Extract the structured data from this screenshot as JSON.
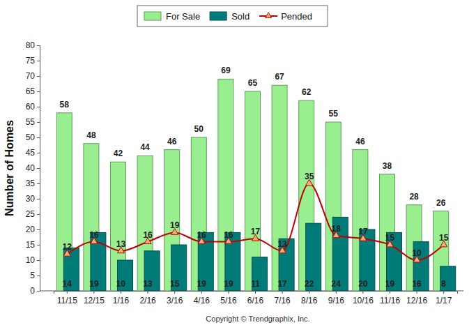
{
  "chart_data": {
    "type": "bar",
    "categories": [
      "11/15",
      "12/15",
      "1/16",
      "2/16",
      "3/16",
      "4/16",
      "5/16",
      "6/16",
      "7/16",
      "8/16",
      "9/16",
      "10/16",
      "11/16",
      "12/16",
      "1/17"
    ],
    "series": [
      {
        "name": "For Sale",
        "type": "bar",
        "color": "#99ee90",
        "values": [
          58,
          48,
          42,
          44,
          46,
          50,
          69,
          65,
          67,
          62,
          55,
          46,
          38,
          28,
          26
        ]
      },
      {
        "name": "Sold",
        "type": "bar",
        "color": "#007b78",
        "values": [
          14,
          19,
          10,
          13,
          15,
          19,
          19,
          11,
          17,
          22,
          24,
          20,
          19,
          16,
          8
        ]
      },
      {
        "name": "Pended",
        "type": "line",
        "color": "#c00000",
        "marker": "triangle",
        "values": [
          12,
          16,
          13,
          16,
          19,
          16,
          16,
          17,
          13,
          35,
          18,
          17,
          15,
          10,
          15
        ]
      }
    ],
    "ylabel": "Number of Homes",
    "ylim": [
      0,
      80
    ],
    "yticks": [
      0,
      5,
      10,
      15,
      20,
      25,
      30,
      35,
      40,
      45,
      50,
      55,
      60,
      65,
      70,
      75,
      80
    ],
    "grid": false,
    "legend": "top",
    "data_labels": true,
    "annotations": [
      "Copyright © Trendgraphix, Inc."
    ]
  }
}
